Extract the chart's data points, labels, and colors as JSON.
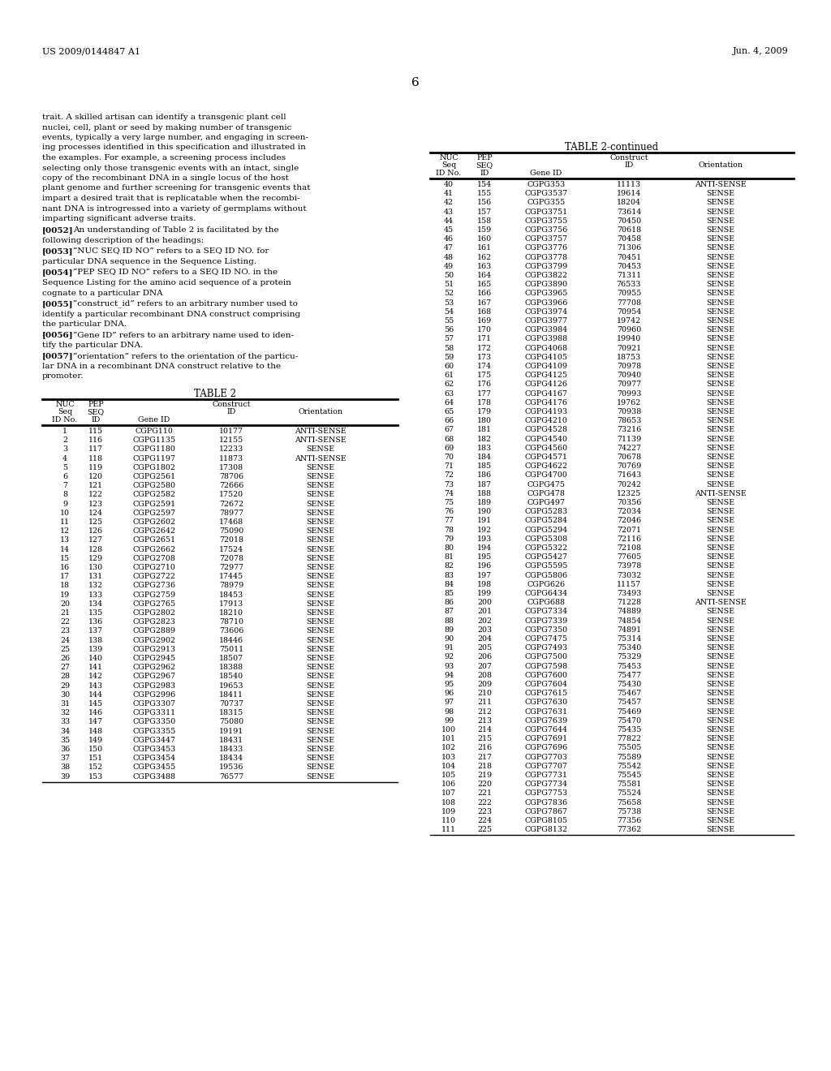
{
  "header_left": "US 2009/0144847 A1",
  "header_right": "Jun. 4, 2009",
  "page_number": "6",
  "body_text_lines": [
    "trait. A skilled artisan can identify a transgenic plant cell",
    "nuclei, cell, plant or seed by making number of transgenic",
    "events, typically a very large number, and engaging in screen-",
    "ing processes identified in this specification and illustrated in",
    "the examples. For example, a screening process includes",
    "selecting only those transgenic events with an intact, single",
    "copy of the recombinant DNA in a single locus of the host",
    "plant genome and further screening for transgenic events that",
    "impart a desired trait that is replicatable when the recombi-",
    "nant DNA is introgressed into a variety of germplams without",
    "imparting significant adverse traits."
  ],
  "paragraphs": [
    {
      "tag": "[0052]",
      "lines": [
        "    An understanding of Table 2 is facilitated by the",
        "following description of the headings:"
      ]
    },
    {
      "tag": "[0053]",
      "lines": [
        "    “NUC SEQ ID NO” refers to a SEQ ID NO. for",
        "particular DNA sequence in the Sequence Listing."
      ]
    },
    {
      "tag": "[0054]",
      "lines": [
        "    “PEP SEQ ID NO” refers to a SEQ ID NO. in the",
        "Sequence Listing for the amino acid sequence of a protein",
        "cognate to a particular DNA"
      ]
    },
    {
      "tag": "[0055]",
      "lines": [
        "    “construct_id” refers to an arbitrary number used to",
        "identify a particular recombinant DNA construct comprising",
        "the particular DNA."
      ]
    },
    {
      "tag": "[0056]",
      "lines": [
        "    “Gene ID” refers to an arbitrary name used to iden-",
        "tify the particular DNA."
      ]
    },
    {
      "tag": "[0057]",
      "lines": [
        "    “orientation” refers to the orientation of the particu-",
        "lar DNA in a recombinant DNA construct relative to the",
        "promoter."
      ]
    }
  ],
  "table2_title": "TABLE 2",
  "table2_continued_title": "TABLE 2-continued",
  "table2_data": [
    [
      1,
      115,
      "CGPG110",
      10177,
      "ANTI-SENSE"
    ],
    [
      2,
      116,
      "CGPG1135",
      12155,
      "ANTI-SENSE"
    ],
    [
      3,
      117,
      "CGPG1180",
      12233,
      "SENSE"
    ],
    [
      4,
      118,
      "CGPG1197",
      11873,
      "ANTI-SENSE"
    ],
    [
      5,
      119,
      "CGPG1802",
      17308,
      "SENSE"
    ],
    [
      6,
      120,
      "CGPG2561",
      78706,
      "SENSE"
    ],
    [
      7,
      121,
      "CGPG2580",
      72666,
      "SENSE"
    ],
    [
      8,
      122,
      "CGPG2582",
      17520,
      "SENSE"
    ],
    [
      9,
      123,
      "CGPG2591",
      72672,
      "SENSE"
    ],
    [
      10,
      124,
      "CGPG2597",
      78977,
      "SENSE"
    ],
    [
      11,
      125,
      "CGPG2602",
      17468,
      "SENSE"
    ],
    [
      12,
      126,
      "CGPG2642",
      75090,
      "SENSE"
    ],
    [
      13,
      127,
      "CGPG2651",
      72018,
      "SENSE"
    ],
    [
      14,
      128,
      "CGPG2662",
      17524,
      "SENSE"
    ],
    [
      15,
      129,
      "CGPG2708",
      72078,
      "SENSE"
    ],
    [
      16,
      130,
      "CGPG2710",
      72977,
      "SENSE"
    ],
    [
      17,
      131,
      "CGPG2722",
      17445,
      "SENSE"
    ],
    [
      18,
      132,
      "CGPG2736",
      78979,
      "SENSE"
    ],
    [
      19,
      133,
      "CGPG2759",
      18453,
      "SENSE"
    ],
    [
      20,
      134,
      "CGPG2765",
      17913,
      "SENSE"
    ],
    [
      21,
      135,
      "CGPG2802",
      18210,
      "SENSE"
    ],
    [
      22,
      136,
      "CGPG2823",
      78710,
      "SENSE"
    ],
    [
      23,
      137,
      "CGPG2889",
      73606,
      "SENSE"
    ],
    [
      24,
      138,
      "CGPG2902",
      18446,
      "SENSE"
    ],
    [
      25,
      139,
      "CGPG2913",
      75011,
      "SENSE"
    ],
    [
      26,
      140,
      "CGPG2945",
      18507,
      "SENSE"
    ],
    [
      27,
      141,
      "CGPG2962",
      18388,
      "SENSE"
    ],
    [
      28,
      142,
      "CGPG2967",
      18540,
      "SENSE"
    ],
    [
      29,
      143,
      "CGPG2983",
      19653,
      "SENSE"
    ],
    [
      30,
      144,
      "CGPG2996",
      18411,
      "SENSE"
    ],
    [
      31,
      145,
      "CGPG3307",
      70737,
      "SENSE"
    ],
    [
      32,
      146,
      "CGPG3311",
      18315,
      "SENSE"
    ],
    [
      33,
      147,
      "CGPG3350",
      75080,
      "SENSE"
    ],
    [
      34,
      148,
      "CGPG3355",
      19191,
      "SENSE"
    ],
    [
      35,
      149,
      "CGPG3447",
      18431,
      "SENSE"
    ],
    [
      36,
      150,
      "CGPG3453",
      18433,
      "SENSE"
    ],
    [
      37,
      151,
      "CGPG3454",
      18434,
      "SENSE"
    ],
    [
      38,
      152,
      "CGPG3455",
      19536,
      "SENSE"
    ],
    [
      39,
      153,
      "CGPG3488",
      76577,
      "SENSE"
    ]
  ],
  "table2cont_data": [
    [
      40,
      154,
      "CGPG353",
      11113,
      "ANTI-SENSE"
    ],
    [
      41,
      155,
      "CGPG3537",
      19614,
      "SENSE"
    ],
    [
      42,
      156,
      "CGPG355",
      18204,
      "SENSE"
    ],
    [
      43,
      157,
      "CGPG3751",
      73614,
      "SENSE"
    ],
    [
      44,
      158,
      "CGPG3755",
      70450,
      "SENSE"
    ],
    [
      45,
      159,
      "CGPG3756",
      70618,
      "SENSE"
    ],
    [
      46,
      160,
      "CGPG3757",
      70458,
      "SENSE"
    ],
    [
      47,
      161,
      "CGPG3776",
      71306,
      "SENSE"
    ],
    [
      48,
      162,
      "CGPG3778",
      70451,
      "SENSE"
    ],
    [
      49,
      163,
      "CGPG3799",
      70453,
      "SENSE"
    ],
    [
      50,
      164,
      "CGPG3822",
      71311,
      "SENSE"
    ],
    [
      51,
      165,
      "CGPG3890",
      76533,
      "SENSE"
    ],
    [
      52,
      166,
      "CGPG3965",
      70955,
      "SENSE"
    ],
    [
      53,
      167,
      "CGPG3966",
      77708,
      "SENSE"
    ],
    [
      54,
      168,
      "CGPG3974",
      70954,
      "SENSE"
    ],
    [
      55,
      169,
      "CGPG3977",
      19742,
      "SENSE"
    ],
    [
      56,
      170,
      "CGPG3984",
      70960,
      "SENSE"
    ],
    [
      57,
      171,
      "CGPG3988",
      19940,
      "SENSE"
    ],
    [
      58,
      172,
      "CGPG4068",
      70921,
      "SENSE"
    ],
    [
      59,
      173,
      "CGPG4105",
      18753,
      "SENSE"
    ],
    [
      60,
      174,
      "CGPG4109",
      70978,
      "SENSE"
    ],
    [
      61,
      175,
      "CGPG4125",
      70940,
      "SENSE"
    ],
    [
      62,
      176,
      "CGPG4126",
      70977,
      "SENSE"
    ],
    [
      63,
      177,
      "CGPG4167",
      70993,
      "SENSE"
    ],
    [
      64,
      178,
      "CGPG4176",
      19762,
      "SENSE"
    ],
    [
      65,
      179,
      "CGPG4193",
      70938,
      "SENSE"
    ],
    [
      66,
      180,
      "CGPG4210",
      78653,
      "SENSE"
    ],
    [
      67,
      181,
      "CGPG4528",
      73216,
      "SENSE"
    ],
    [
      68,
      182,
      "CGPG4540",
      71139,
      "SENSE"
    ],
    [
      69,
      183,
      "CGPG4560",
      74227,
      "SENSE"
    ],
    [
      70,
      184,
      "CGPG4571",
      70678,
      "SENSE"
    ],
    [
      71,
      185,
      "CGPG4622",
      70769,
      "SENSE"
    ],
    [
      72,
      186,
      "CGPG4700",
      71643,
      "SENSE"
    ],
    [
      73,
      187,
      "CGPG475",
      70242,
      "SENSE"
    ],
    [
      74,
      188,
      "CGPG478",
      12325,
      "ANTI-SENSE"
    ],
    [
      75,
      189,
      "CGPG497",
      70356,
      "SENSE"
    ],
    [
      76,
      190,
      "CGPG5283",
      72034,
      "SENSE"
    ],
    [
      77,
      191,
      "CGPG5284",
      72046,
      "SENSE"
    ],
    [
      78,
      192,
      "CGPG5294",
      72071,
      "SENSE"
    ],
    [
      79,
      193,
      "CGPG5308",
      72116,
      "SENSE"
    ],
    [
      80,
      194,
      "CGPG5322",
      72108,
      "SENSE"
    ],
    [
      81,
      195,
      "CGPG5427",
      77605,
      "SENSE"
    ],
    [
      82,
      196,
      "CGPG5595",
      73978,
      "SENSE"
    ],
    [
      83,
      197,
      "CGPG5806",
      73032,
      "SENSE"
    ],
    [
      84,
      198,
      "CGPG626",
      11157,
      "SENSE"
    ],
    [
      85,
      199,
      "CGPG6434",
      73493,
      "SENSE"
    ],
    [
      86,
      200,
      "CGPG688",
      71228,
      "ANTI-SENSE"
    ],
    [
      87,
      201,
      "CGPG7334",
      74889,
      "SENSE"
    ],
    [
      88,
      202,
      "CGPG7339",
      74854,
      "SENSE"
    ],
    [
      89,
      203,
      "CGPG7350",
      74891,
      "SENSE"
    ],
    [
      90,
      204,
      "CGPG7475",
      75314,
      "SENSE"
    ],
    [
      91,
      205,
      "CGPG7493",
      75340,
      "SENSE"
    ],
    [
      92,
      206,
      "CGPG7500",
      75329,
      "SENSE"
    ],
    [
      93,
      207,
      "CGPG7598",
      75453,
      "SENSE"
    ],
    [
      94,
      208,
      "CGPG7600",
      75477,
      "SENSE"
    ],
    [
      95,
      209,
      "CGPG7604",
      75430,
      "SENSE"
    ],
    [
      96,
      210,
      "CGPG7615",
      75467,
      "SENSE"
    ],
    [
      97,
      211,
      "CGPG7630",
      75457,
      "SENSE"
    ],
    [
      98,
      212,
      "CGPG7631",
      75469,
      "SENSE"
    ],
    [
      99,
      213,
      "CGPG7639",
      75470,
      "SENSE"
    ],
    [
      100,
      214,
      "CGPG7644",
      75435,
      "SENSE"
    ],
    [
      101,
      215,
      "CGPG7691",
      77822,
      "SENSE"
    ],
    [
      102,
      216,
      "CGPG7696",
      75505,
      "SENSE"
    ],
    [
      103,
      217,
      "CGPG7703",
      75589,
      "SENSE"
    ],
    [
      104,
      218,
      "CGPG7707",
      75542,
      "SENSE"
    ],
    [
      105,
      219,
      "CGPG7731",
      75545,
      "SENSE"
    ],
    [
      106,
      220,
      "CGPG7734",
      75581,
      "SENSE"
    ],
    [
      107,
      221,
      "CGPG7753",
      75524,
      "SENSE"
    ],
    [
      108,
      222,
      "CGPG7836",
      75658,
      "SENSE"
    ],
    [
      109,
      223,
      "CGPG7867",
      75738,
      "SENSE"
    ],
    [
      110,
      224,
      "CGPG8105",
      77356,
      "SENSE"
    ],
    [
      111,
      225,
      "CGPG8132",
      77362,
      "SENSE"
    ]
  ]
}
